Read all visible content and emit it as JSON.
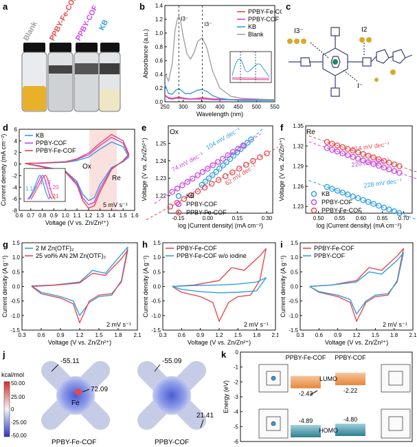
{
  "colors": {
    "red": "#e8474d",
    "magenta": "#cc44e0",
    "blue": "#2e9fe3",
    "gray": "#a0a0a0",
    "navy": "#1f5fa8",
    "orange": "#f1a35c",
    "teal": "#3a8d9e",
    "shade_pink": "#f8d4cf"
  },
  "panels": {
    "a": {
      "label": "a",
      "vials": [
        "Blank",
        "PPBY-Fe-COF",
        "PPBY-COF",
        "KB"
      ]
    },
    "b": {
      "label": "b",
      "peak_labels": [
        "I3⁻",
        "I3⁻"
      ]
    },
    "c": {
      "label": "c",
      "labels": [
        "I3⁻",
        "I2",
        "I⁻"
      ]
    },
    "d": {
      "label": "d",
      "annotations": [
        "Ox",
        "Re",
        "5 mV s⁻¹"
      ],
      "inset_values": [
        "1.17",
        "1.19",
        "1.20",
        "1.21"
      ]
    },
    "e": {
      "label": "e",
      "corner": "Ox",
      "slopes": [
        "74 mV dec⁻¹",
        "104 mV dec⁻¹",
        "62 mV dec⁻¹"
      ]
    },
    "f": {
      "label": "f",
      "corner": "Re",
      "slopes": [
        "214 mV dec⁻¹",
        "220 mV dec⁻¹",
        "228 mV dec⁻¹"
      ]
    },
    "g": {
      "label": "g",
      "scan": "2 mV s⁻¹"
    },
    "h": {
      "label": "h",
      "scan": "2 mV s⁻¹"
    },
    "i": {
      "label": "i",
      "scan": "2 mV s⁻¹"
    },
    "j": {
      "label": "j",
      "colorbar_title": "kcal/mol",
      "colorbar_ticks": [
        "50.00",
        "25.00",
        "0",
        "-25.00",
        "-50.00"
      ],
      "values": [
        "-55.11",
        "72.09",
        "Fe",
        "-55.09",
        "21.41"
      ],
      "captions": [
        "PPBY-Fe-COF",
        "PPBY-COF"
      ]
    },
    "k": {
      "label": "k"
    }
  },
  "chart_data": [
    {
      "panel": "b",
      "type": "line",
      "xlabel": "Wavelength (nm)",
      "ylabel": "Absorbance (a.u.)",
      "xlim": [
        250,
        550
      ],
      "ylim": [
        0,
        1.4
      ],
      "xticks": [
        "250",
        "300",
        "350",
        "400",
        "450",
        "500",
        "550"
      ],
      "yticks": [
        "0.0",
        "0.2",
        "0.4",
        "0.6",
        "0.8",
        "1.0",
        "1.2",
        "1.4"
      ],
      "series": [
        {
          "name": "PPBY-Fe-COF",
          "color": "red",
          "x": [
            250,
            260,
            270,
            280,
            288,
            296,
            305,
            320,
            340,
            352,
            365,
            380,
            400,
            430,
            460,
            500,
            550
          ],
          "y": [
            0.1,
            0.06,
            0.05,
            0.06,
            0.07,
            0.06,
            0.05,
            0.04,
            0.05,
            0.06,
            0.05,
            0.04,
            0.04,
            0.03,
            0.03,
            0.03,
            0.03
          ]
        },
        {
          "name": "PPBY-COF",
          "color": "magenta",
          "x": [
            250,
            260,
            270,
            280,
            288,
            296,
            305,
            320,
            340,
            352,
            365,
            380,
            400,
            430,
            460,
            500,
            550
          ],
          "y": [
            0.09,
            0.05,
            0.04,
            0.05,
            0.05,
            0.05,
            0.04,
            0.04,
            0.04,
            0.04,
            0.04,
            0.03,
            0.03,
            0.03,
            0.03,
            0.03,
            0.03
          ]
        },
        {
          "name": "KB",
          "color": "blue",
          "x": [
            250,
            260,
            270,
            280,
            288,
            296,
            305,
            320,
            340,
            352,
            365,
            380,
            400,
            430,
            460,
            500,
            550
          ],
          "y": [
            0.25,
            0.12,
            0.11,
            0.17,
            0.19,
            0.16,
            0.12,
            0.12,
            0.17,
            0.18,
            0.15,
            0.09,
            0.05,
            0.03,
            0.02,
            0.02,
            0.02
          ]
        },
        {
          "name": "Blank",
          "color": "gray",
          "x": [
            250,
            260,
            270,
            278,
            285,
            288,
            292,
            300,
            310,
            320,
            330,
            340,
            352,
            365,
            380,
            400,
            430,
            460,
            500,
            550
          ],
          "y": [
            0.42,
            0.3,
            0.55,
            1.05,
            1.22,
            1.24,
            1.2,
            0.95,
            0.7,
            0.62,
            0.72,
            0.88,
            0.93,
            0.78,
            0.45,
            0.2,
            0.08,
            0.05,
            0.04,
            0.03
          ]
        }
      ]
    },
    {
      "panel": "d",
      "type": "line",
      "xlabel": "Voltage (V vs. Zn/Zn²⁺)",
      "ylabel": "Current density (mA cm⁻²)",
      "xlim": [
        0.6,
        1.6
      ],
      "ylim": [
        -8,
        6
      ],
      "xticks": [
        "0.6",
        "0.7",
        "0.8",
        "0.9",
        "1.0",
        "1.1",
        "1.2",
        "1.3",
        "1.4",
        "1.5",
        "1.6"
      ],
      "yticks": [
        "-8",
        "-6",
        "-4",
        "-2",
        "0",
        "2",
        "4",
        "6"
      ],
      "series": [
        {
          "name": "KB",
          "color": "blue",
          "x": [
            0.65,
            0.8,
            1.0,
            1.1,
            1.2,
            1.3,
            1.4,
            1.5,
            1.55,
            1.5,
            1.4,
            1.3,
            1.25,
            1.2,
            1.15,
            1.1,
            1.0,
            0.8,
            0.65
          ],
          "y": [
            0.1,
            0.15,
            0.3,
            0.6,
            1.2,
            2.6,
            3.8,
            3.0,
            1.2,
            0.4,
            -0.6,
            -3.5,
            -5.8,
            -6.3,
            -5.2,
            -3.0,
            -1.2,
            -0.4,
            0.1
          ]
        },
        {
          "name": "PPBY-COF",
          "color": "magenta",
          "x": [
            0.65,
            0.8,
            1.0,
            1.1,
            1.2,
            1.3,
            1.4,
            1.5,
            1.55,
            1.5,
            1.4,
            1.3,
            1.25,
            1.2,
            1.15,
            1.1,
            1.0,
            0.8,
            0.65
          ],
          "y": [
            0.1,
            0.2,
            0.4,
            0.8,
            1.6,
            3.2,
            4.6,
            3.6,
            1.5,
            0.5,
            -0.8,
            -4.2,
            -6.6,
            -7.0,
            -5.8,
            -3.3,
            -1.3,
            -0.4,
            0.1
          ]
        },
        {
          "name": "PPBY-Fe-COF",
          "color": "red",
          "x": [
            0.65,
            0.8,
            1.0,
            1.1,
            1.2,
            1.3,
            1.4,
            1.5,
            1.55,
            1.5,
            1.4,
            1.3,
            1.25,
            1.2,
            1.15,
            1.1,
            1.0,
            0.8,
            0.65
          ],
          "y": [
            0.1,
            0.2,
            0.4,
            0.9,
            1.9,
            3.6,
            5.1,
            4.0,
            1.7,
            0.6,
            -0.9,
            -4.8,
            -7.2,
            -7.6,
            -6.3,
            -3.6,
            -1.4,
            -0.5,
            0.1
          ]
        }
      ],
      "legend": [
        "KB",
        "PPBY-COF",
        "PPBY-Fe-COF"
      ]
    },
    {
      "panel": "e",
      "type": "scatter",
      "xlabel": "log |Current density| (mA cm⁻²)",
      "ylabel": "Voltage (V vs. Zn/Zn²⁺)",
      "xlim": [
        -0.2,
        0.33
      ],
      "ylim": [
        1.21,
        1.26
      ],
      "xticks": [
        "-0.15",
        "0.00",
        "0.15",
        "0.30"
      ],
      "yticks": [
        "1.22",
        "1.23",
        "1.24",
        "1.25"
      ],
      "series": [
        {
          "name": "KB",
          "color": "blue",
          "x0": -0.03,
          "x1": 0.22,
          "y0": 1.2262,
          "y1": 1.2522
        },
        {
          "name": "PPBY-COF",
          "color": "magenta",
          "x0": -0.18,
          "x1": 0.18,
          "y0": 1.2222,
          "y1": 1.2488
        },
        {
          "name": "PPBY-Fe-COF",
          "color": "red",
          "x0": -0.19,
          "x1": 0.3,
          "y0": 1.2138,
          "y1": 1.2442
        }
      ],
      "legend": [
        "KB",
        "PPBY-COF",
        "PPBY-Fe-COF"
      ]
    },
    {
      "panel": "f",
      "type": "scatter",
      "xlabel": "log |Current density| (mA cm⁻²)",
      "ylabel": "Voltage (V vs. Zn/Zn²⁺)",
      "xlim": [
        0.47,
        0.72
      ],
      "ylim": [
        1.22,
        1.35
      ],
      "xticks": [
        "0.50",
        "0.55",
        "0.60",
        "0.65",
        "0.70"
      ],
      "yticks": [
        "1.23",
        "1.26",
        "1.29",
        "1.32",
        "1.35"
      ],
      "series": [
        {
          "name": "PPBY-Fe-COF",
          "color": "red",
          "x0": 0.52,
          "x1": 0.69,
          "y0": 1.326,
          "y1": 1.29
        },
        {
          "name": "PPBY-COF",
          "color": "magenta",
          "x0": 0.52,
          "x1": 0.69,
          "y0": 1.317,
          "y1": 1.28
        },
        {
          "name": "KB",
          "color": "blue",
          "x0": 0.52,
          "x1": 0.69,
          "y0": 1.259,
          "y1": 1.22
        }
      ],
      "legend": [
        "KB",
        "PPBY-COF",
        "PPBY-Fe-COF"
      ]
    },
    {
      "panel": "g",
      "type": "line",
      "xlabel": "Voltage (V vs. Zn/Zn²⁺)",
      "ylabel": "Current density (A g⁻¹)",
      "xlim": [
        0.3,
        2.1
      ],
      "ylim": [
        -1.5,
        1.5
      ],
      "xticks": [
        "0.3",
        "0.6",
        "0.9",
        "1.2",
        "1.5",
        "1.8",
        "2.1"
      ],
      "yticks": [
        "-1.5",
        "-1.0",
        "-0.5",
        "0.0",
        "0.5",
        "1.0",
        "1.5"
      ],
      "series": [
        {
          "name": "2 M Zn(OTF)₂",
          "color": "blue",
          "x": [
            0.45,
            0.8,
            1.2,
            1.4,
            1.6,
            1.85,
            1.95,
            1.85,
            1.7,
            1.5,
            1.35,
            1.2,
            1.1,
            0.9,
            0.6,
            0.45
          ],
          "y": [
            0.02,
            0.05,
            0.15,
            0.55,
            0.45,
            1.1,
            1.35,
            0.2,
            -0.3,
            -0.35,
            -0.55,
            -1.0,
            -0.5,
            -0.35,
            -0.2,
            0.02
          ]
        },
        {
          "name": "25 vol% AN 2M Zn(OTF)₂",
          "color": "red",
          "x": [
            0.45,
            0.8,
            1.2,
            1.4,
            1.6,
            1.85,
            1.95,
            1.85,
            1.7,
            1.5,
            1.35,
            1.2,
            1.1,
            0.9,
            0.6,
            0.45
          ],
          "y": [
            0.0,
            0.04,
            0.12,
            0.45,
            0.38,
            0.95,
            1.25,
            0.15,
            -0.25,
            -0.3,
            -0.5,
            -1.25,
            -0.6,
            -0.4,
            -0.25,
            0.0
          ]
        }
      ],
      "legend": [
        "2 M Zn(OTF)₂",
        "25 vol% AN 2M Zn(OTF)₂"
      ]
    },
    {
      "panel": "h",
      "type": "line",
      "xlabel": "Voltage (V vs. Zn/Zn²⁺)",
      "ylabel": "Current density (A g⁻¹)",
      "xlim": [
        0.3,
        2.1
      ],
      "ylim": [
        -1.5,
        1.5
      ],
      "xticks": [
        "0.3",
        "0.6",
        "0.9",
        "1.2",
        "1.5",
        "1.8",
        "2.1"
      ],
      "yticks": [
        "-1.5",
        "-1.0",
        "-0.5",
        "0.0",
        "0.5",
        "1.0",
        "1.5"
      ],
      "series": [
        {
          "name": "PPBY-Fe-COF",
          "color": "red",
          "x": [
            0.45,
            0.8,
            1.2,
            1.4,
            1.6,
            1.85,
            1.95,
            1.85,
            1.7,
            1.5,
            1.35,
            1.2,
            1.1,
            0.9,
            0.6,
            0.45
          ],
          "y": [
            0.0,
            0.05,
            0.2,
            0.65,
            0.55,
            1.05,
            1.3,
            0.2,
            -0.3,
            -0.35,
            -0.55,
            -1.2,
            -0.55,
            -0.35,
            -0.2,
            0.0
          ]
        },
        {
          "name": "PPBY-Fe-COF w/o iodine",
          "color": "blue",
          "x": [
            0.45,
            0.8,
            1.2,
            1.5,
            1.8,
            1.95,
            1.8,
            1.5,
            1.2,
            0.9,
            0.6,
            0.45
          ],
          "y": [
            0.0,
            0.03,
            0.05,
            0.08,
            0.15,
            0.3,
            -0.15,
            -0.2,
            -0.22,
            -0.18,
            -0.1,
            0.0
          ]
        }
      ],
      "legend": [
        "PPBY-Fe-COF",
        "PPBY-Fe-COF w/o iodine"
      ]
    },
    {
      "panel": "i",
      "type": "line",
      "xlabel": "Voltage (V vs. Zn/Zn²⁺)",
      "ylabel": "Current density (A g⁻¹)",
      "xlim": [
        0.3,
        2.1
      ],
      "ylim": [
        -1.5,
        1.5
      ],
      "xticks": [
        "0.3",
        "0.6",
        "0.9",
        "1.2",
        "1.5",
        "1.8",
        "2.1"
      ],
      "yticks": [
        "-1.5",
        "-1.0",
        "-0.5",
        "0.0",
        "0.5",
        "1.0",
        "1.5"
      ],
      "series": [
        {
          "name": "PPBY-Fe-COF",
          "color": "red",
          "x": [
            0.45,
            0.8,
            1.2,
            1.4,
            1.6,
            1.85,
            1.95,
            1.85,
            1.7,
            1.5,
            1.35,
            1.2,
            1.1,
            0.9,
            0.6,
            0.45
          ],
          "y": [
            0.0,
            0.05,
            0.2,
            0.65,
            0.55,
            1.05,
            1.3,
            0.2,
            -0.3,
            -0.35,
            -0.55,
            -1.2,
            -0.55,
            -0.35,
            -0.2,
            0.0
          ]
        },
        {
          "name": "PPBY-COF",
          "color": "blue",
          "x": [
            0.45,
            0.8,
            1.2,
            1.4,
            1.6,
            1.85,
            1.95,
            1.85,
            1.7,
            1.5,
            1.35,
            1.2,
            1.1,
            0.9,
            0.6,
            0.45
          ],
          "y": [
            0.0,
            0.05,
            0.15,
            0.5,
            0.42,
            0.9,
            1.15,
            0.15,
            -0.25,
            -0.3,
            -0.5,
            -0.95,
            -0.45,
            -0.3,
            -0.18,
            0.0
          ]
        }
      ],
      "legend": [
        "PPBY-Fe-COF",
        "PPBY-COF"
      ]
    },
    {
      "panel": "k",
      "type": "bar",
      "ylabel": "Energy (eV)",
      "ylim": [
        -6,
        0
      ],
      "yticks": [
        "0",
        "-1",
        "-2",
        "-3",
        "-4",
        "-5",
        "-6"
      ],
      "categories": [
        "PPBY-Fe-COF",
        "PPBY-COF"
      ],
      "series": [
        {
          "name": "LUMO",
          "values": [
            -2.43,
            -2.22
          ],
          "labels": [
            "-2.43",
            "-2.22"
          ]
        },
        {
          "name": "HOMO",
          "values": [
            -4.89,
            -4.8
          ],
          "labels": [
            "-4.89",
            "-4.80"
          ]
        }
      ]
    }
  ]
}
